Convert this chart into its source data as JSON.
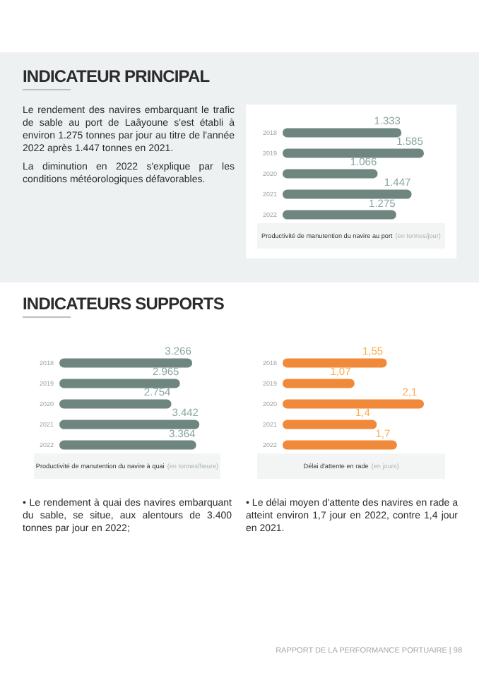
{
  "chart_data": [
    {
      "type": "bar",
      "orientation": "horizontal",
      "title": "Productivité de manutention du navire au port",
      "subtitle": "(en tonnes/jour)",
      "categories": [
        "2018",
        "2019",
        "2020",
        "2021",
        "2022"
      ],
      "values": [
        1333,
        1585,
        1066,
        1447,
        1275
      ],
      "value_labels": [
        "1.333",
        "1.585",
        "1.066",
        "1.447",
        "1.275"
      ],
      "color": "#6f8580",
      "annotations": [
        "INDICATEUR PRINCIPAL",
        "Le rendement des navires embarquant le trafic de sable au port de Laâyoune s'est établi à environ 1.275 tonnes par jour au titre de l'année 2022 après 1.447 tonnes en 2021.",
        "La diminution en 2022 s'explique par les conditions météorologiques défavorables."
      ]
    },
    {
      "type": "bar",
      "orientation": "horizontal",
      "title": "Productivité de manutention du navire à quai",
      "subtitle": "(en tonnes/heure)",
      "categories": [
        "2018",
        "2019",
        "2020",
        "2021",
        "2022"
      ],
      "values": [
        3266,
        2965,
        2754,
        3442,
        3364
      ],
      "value_labels": [
        "3.266",
        "2.965",
        "2.754",
        "3.442",
        "3.364"
      ],
      "color": "#6f8580",
      "annotations": [
        "INDICATEURS SUPPORTS",
        "• Le rendement à quai des navires embarquant du sable, se situe, aux alentours de 3.400 tonnes par jour en 2022;"
      ]
    },
    {
      "type": "bar",
      "orientation": "horizontal",
      "title": "Délai d'attente en rade",
      "subtitle": "(en jours)",
      "categories": [
        "2018",
        "2019",
        "2020",
        "2021",
        "2022"
      ],
      "values": [
        1.55,
        1.07,
        2.1,
        1.4,
        1.7
      ],
      "value_labels": [
        "1,55",
        "1,07",
        "2,1",
        "1,4",
        "1,7"
      ],
      "color": "#f08a3a",
      "annotations": [
        "• Le délai moyen d'attente des navires en rade a atteint environ 1,7 jour en 2022, contre 1,4 jour en 2021.",
        "RAPPORT DE LA PERFORMANCE PORTUAIRE | 98"
      ]
    }
  ]
}
